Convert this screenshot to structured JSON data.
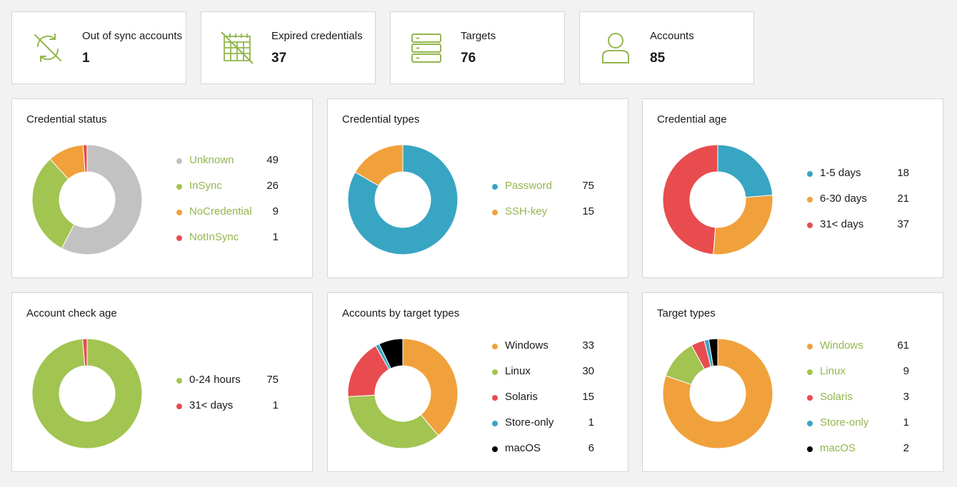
{
  "stats": [
    {
      "label": "Out of sync accounts",
      "value": "1",
      "icon": "sync-off-icon"
    },
    {
      "label": "Expired credentials",
      "value": "37",
      "icon": "calendar-expired-icon"
    },
    {
      "label": "Targets",
      "value": "76",
      "icon": "server-stack-icon"
    },
    {
      "label": "Accounts",
      "value": "85",
      "icon": "user-icon"
    }
  ],
  "colors": {
    "accent": "#93b64e",
    "gray": "#c2c2c2",
    "green": "#a2c451",
    "orange": "#f0a13b",
    "red": "#e84c4f",
    "blue": "#38a5c3",
    "black": "#000000"
  },
  "cards": [
    {
      "title": "Credential status",
      "chart_data": {
        "type": "pie",
        "categories": [
          "Unknown",
          "InSync",
          "NoCredential",
          "NotInSync"
        ],
        "values": [
          49,
          26,
          9,
          1
        ],
        "colors": [
          "#c2c2c2",
          "#a2c451",
          "#f0a13b",
          "#e84c4f"
        ],
        "link_labels": true
      }
    },
    {
      "title": "Credential types",
      "chart_data": {
        "type": "pie",
        "categories": [
          "Password",
          "SSH-key"
        ],
        "values": [
          75,
          15
        ],
        "colors": [
          "#38a5c3",
          "#f0a13b"
        ],
        "link_labels": true
      }
    },
    {
      "title": "Credential age",
      "chart_data": {
        "type": "pie",
        "categories": [
          "1-5 days",
          "6-30 days",
          "31< days"
        ],
        "values": [
          18,
          21,
          37
        ],
        "colors": [
          "#38a5c3",
          "#f0a13b",
          "#e84c4f"
        ],
        "link_labels": false
      }
    },
    {
      "title": "Account check age",
      "chart_data": {
        "type": "pie",
        "categories": [
          "0-24 hours",
          "31< days"
        ],
        "values": [
          75,
          1
        ],
        "colors": [
          "#a2c451",
          "#e84c4f"
        ],
        "link_labels": false
      }
    },
    {
      "title": "Accounts by target types",
      "chart_data": {
        "type": "pie",
        "categories": [
          "Windows",
          "Linux",
          "Solaris",
          "Store-only",
          "macOS"
        ],
        "values": [
          33,
          30,
          15,
          1,
          6
        ],
        "colors": [
          "#f0a13b",
          "#a2c451",
          "#e84c4f",
          "#38a5c3",
          "#000000"
        ],
        "link_labels": false
      }
    },
    {
      "title": "Target types",
      "chart_data": {
        "type": "pie",
        "categories": [
          "Windows",
          "Linux",
          "Solaris",
          "Store-only",
          "macOS"
        ],
        "values": [
          61,
          9,
          3,
          1,
          2
        ],
        "colors": [
          "#f0a13b",
          "#a2c451",
          "#e84c4f",
          "#38a5c3",
          "#000000"
        ],
        "link_labels": true
      }
    }
  ]
}
